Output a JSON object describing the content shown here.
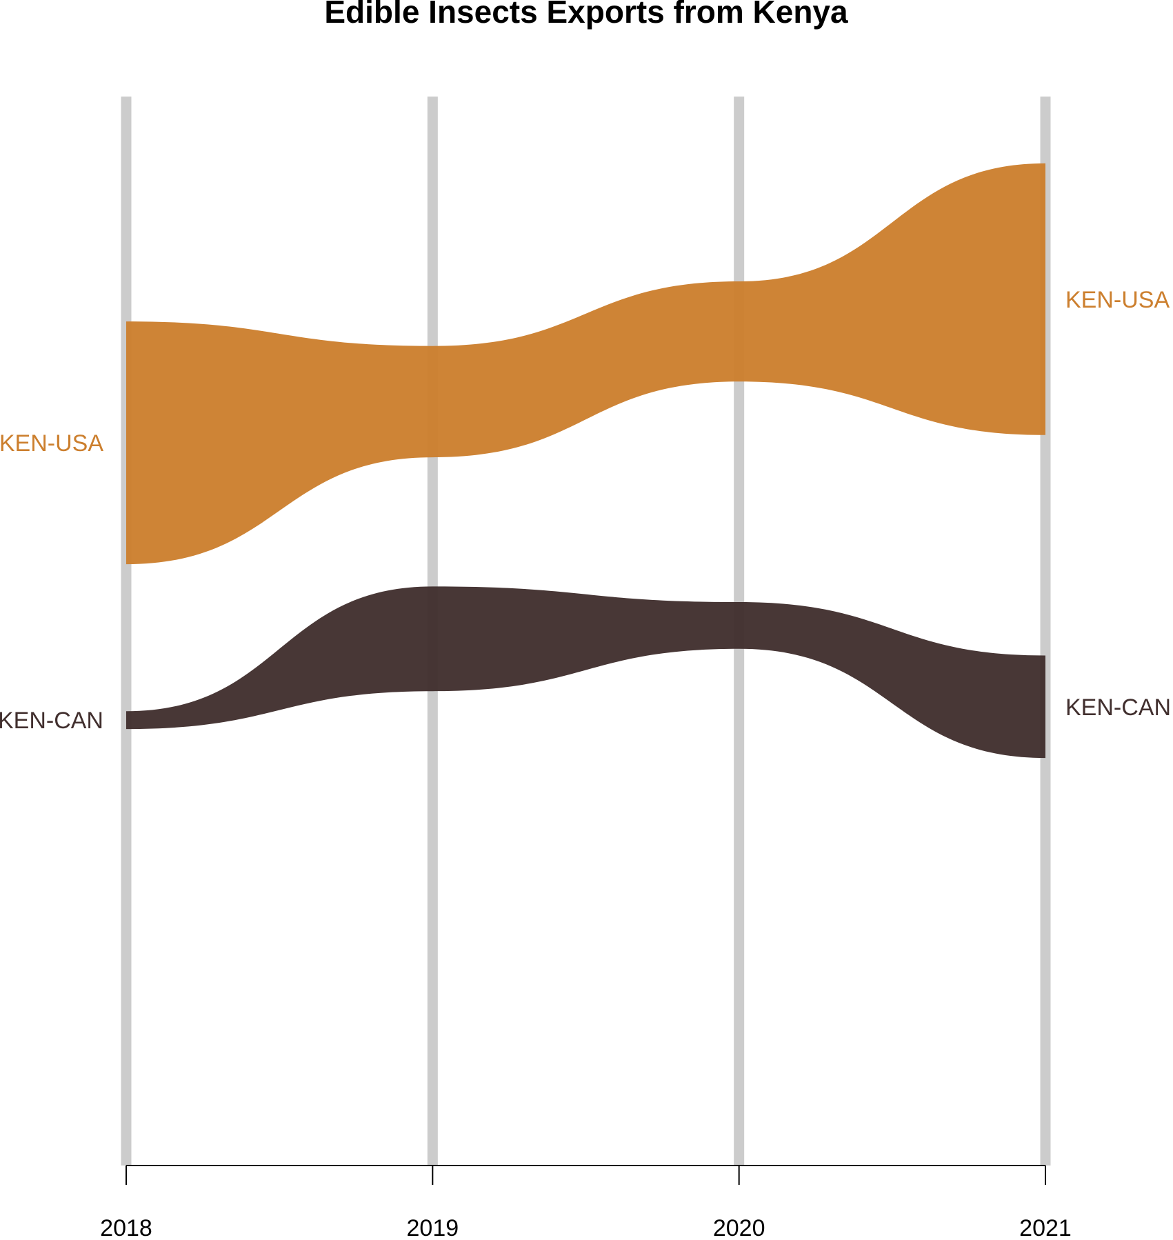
{
  "chart_data": {
    "type": "area",
    "title": "Edible Insects Exports from Kenya",
    "xlabel": "",
    "ylabel": "",
    "categories": [
      "2018",
      "2019",
      "2020",
      "2021"
    ],
    "grid": true,
    "legend": "none",
    "series": [
      {
        "name": "KEN-USA",
        "color": "#CC7F2E",
        "lower": [
          37,
          41.8,
          45.2,
          42.8
        ],
        "upper": [
          47.9,
          46.8,
          49.7,
          55
        ]
      },
      {
        "name": "KEN-CAN",
        "color": "#412F2E",
        "lower": [
          29.6,
          31.3,
          33.2,
          28.3
        ],
        "upper": [
          30.4,
          36,
          35.3,
          32.9
        ]
      }
    ],
    "ylim": [
      10,
      58
    ]
  }
}
